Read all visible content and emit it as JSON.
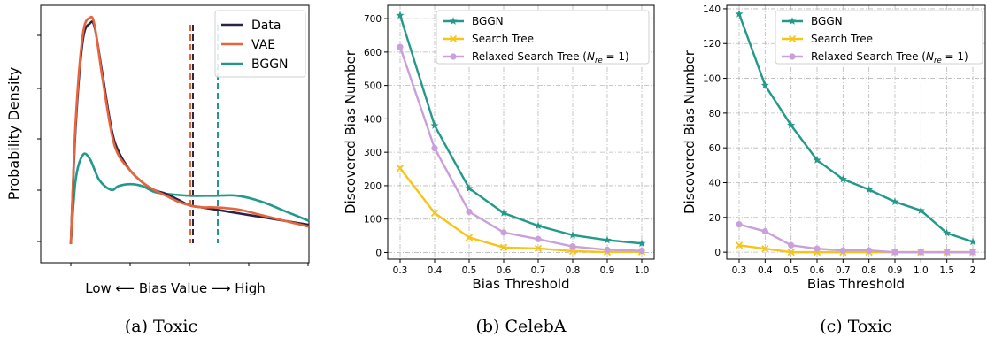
{
  "chart_data": [
    {
      "type": "line",
      "caption": "(a) Toxic",
      "xlabel": "Low ⟵ Bias Value ⟶ High",
      "ylabel": "Probability Density",
      "legend_position": "top-right",
      "series": [
        {
          "name": "Data",
          "color": "#2b2545",
          "mean": 0.52,
          "points": [
            [
              0,
              0.0
            ],
            [
              0.02,
              0.6
            ],
            [
              0.05,
              1.05
            ],
            [
              0.08,
              1.14
            ],
            [
              0.1,
              1.12
            ],
            [
              0.13,
              0.9
            ],
            [
              0.17,
              0.6
            ],
            [
              0.2,
              0.48
            ],
            [
              0.25,
              0.38
            ],
            [
              0.3,
              0.32
            ],
            [
              0.35,
              0.28
            ],
            [
              0.4,
              0.26
            ],
            [
              0.45,
              0.23
            ],
            [
              0.5,
              0.2
            ],
            [
              0.55,
              0.19
            ],
            [
              0.6,
              0.18
            ],
            [
              0.7,
              0.16
            ],
            [
              0.8,
              0.14
            ],
            [
              0.9,
              0.12
            ],
            [
              1.0,
              0.1
            ]
          ]
        },
        {
          "name": "VAE",
          "color": "#e8643d",
          "mean": 0.51,
          "points": [
            [
              0,
              0.0
            ],
            [
              0.02,
              0.63
            ],
            [
              0.05,
              1.08
            ],
            [
              0.08,
              1.17
            ],
            [
              0.1,
              1.13
            ],
            [
              0.13,
              0.88
            ],
            [
              0.17,
              0.58
            ],
            [
              0.2,
              0.46
            ],
            [
              0.25,
              0.38
            ],
            [
              0.3,
              0.32
            ],
            [
              0.35,
              0.28
            ],
            [
              0.4,
              0.25
            ],
            [
              0.45,
              0.22
            ],
            [
              0.5,
              0.2
            ],
            [
              0.55,
              0.19
            ],
            [
              0.6,
              0.19
            ],
            [
              0.7,
              0.18
            ],
            [
              0.8,
              0.15
            ],
            [
              0.9,
              0.12
            ],
            [
              1.0,
              0.09
            ]
          ]
        },
        {
          "name": "BGGN",
          "color": "#22998a",
          "mean": 0.62,
          "points": [
            [
              0,
              0.0
            ],
            [
              0.02,
              0.33
            ],
            [
              0.05,
              0.46
            ],
            [
              0.08,
              0.44
            ],
            [
              0.12,
              0.33
            ],
            [
              0.17,
              0.28
            ],
            [
              0.2,
              0.3
            ],
            [
              0.25,
              0.31
            ],
            [
              0.3,
              0.3
            ],
            [
              0.35,
              0.27
            ],
            [
              0.4,
              0.26
            ],
            [
              0.5,
              0.25
            ],
            [
              0.6,
              0.25
            ],
            [
              0.7,
              0.25
            ],
            [
              0.8,
              0.22
            ],
            [
              0.9,
              0.17
            ],
            [
              1.0,
              0.12
            ]
          ]
        }
      ]
    },
    {
      "type": "line",
      "caption": "(b) CelebA",
      "xlabel": "Bias Threshold",
      "ylabel": "Discovered Bias Number",
      "categories": [
        "0.3",
        "0.4",
        "0.5",
        "0.6",
        "0.7",
        "0.8",
        "0.9",
        "1.0"
      ],
      "yticks": [
        0,
        100,
        200,
        300,
        400,
        500,
        600,
        700
      ],
      "ylim": [
        -20,
        740
      ],
      "legend_position": "top-right",
      "grid": true,
      "series": [
        {
          "name": "BGGN",
          "color": "#22998a",
          "marker": "star",
          "values": [
            710,
            380,
            192,
            118,
            80,
            52,
            37,
            27
          ]
        },
        {
          "name": "Search Tree",
          "color": "#f5c518",
          "marker": "x",
          "values": [
            252,
            118,
            45,
            15,
            12,
            4,
            1,
            2
          ]
        },
        {
          "name": "Relaxed Search Tree (N_re = 1)",
          "color": "#c9a0dc",
          "marker": "circle",
          "values": [
            615,
            312,
            122,
            60,
            40,
            18,
            8,
            5
          ]
        }
      ]
    },
    {
      "type": "line",
      "caption": "(c) Toxic",
      "xlabel": "Bias Threshold",
      "ylabel": "Discovered Bias Number",
      "categories": [
        "0.3",
        "0.4",
        "0.5",
        "0.6",
        "0.7",
        "0.8",
        "0.9",
        "1.0",
        "1.5",
        "2"
      ],
      "yticks": [
        0,
        20,
        40,
        60,
        80,
        100,
        120,
        140
      ],
      "ylim": [
        -4,
        142
      ],
      "legend_position": "top-right",
      "grid": true,
      "series": [
        {
          "name": "BGGN",
          "color": "#22998a",
          "marker": "star",
          "values": [
            137,
            96,
            73,
            53,
            42,
            36,
            29,
            24,
            11,
            6
          ]
        },
        {
          "name": "Search Tree",
          "color": "#f5c518",
          "marker": "x",
          "values": [
            4,
            2,
            0,
            0,
            0,
            0,
            0,
            0,
            0,
            0
          ]
        },
        {
          "name": "Relaxed Search Tree (N_re = 1)",
          "color": "#c9a0dc",
          "marker": "circle",
          "values": [
            16,
            12,
            4,
            2,
            1,
            1,
            0,
            0,
            0,
            0
          ]
        }
      ]
    }
  ]
}
